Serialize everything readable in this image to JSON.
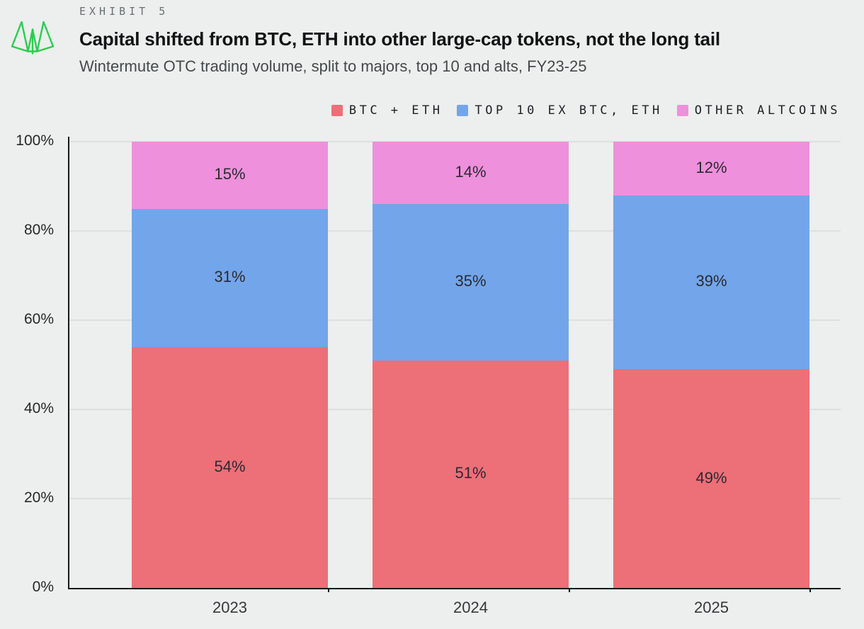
{
  "header": {
    "eyebrow": "EXHIBIT 5",
    "title": "Capital shifted from BTC, ETH into other large-cap tokens, not the long tail",
    "subtitle": "Wintermute OTC trading volume, split to majors, top 10 and alts, FY23-25",
    "logo_color": "#2BCD4F"
  },
  "colors": {
    "background": "#ECEFED",
    "axis": "#17191B",
    "gridline": "#DDE1DE",
    "bar_label": "#2A2B30"
  },
  "chart_data": {
    "type": "bar",
    "stacked": true,
    "title": "Capital shifted from BTC, ETH into other large-cap tokens, not the long tail",
    "subtitle": "Wintermute OTC trading volume, split to majors, top 10 and alts, FY23-25",
    "categories": [
      "2023",
      "2024",
      "2025"
    ],
    "series": [
      {
        "name": "BTC + ETH",
        "color": "#ED6F78",
        "values": [
          54,
          51,
          49
        ]
      },
      {
        "name": "TOP 10 EX BTC, ETH",
        "color": "#73A5EA",
        "values": [
          31,
          35,
          39
        ]
      },
      {
        "name": "OTHER ALTCOINS",
        "color": "#EE90DC",
        "values": [
          15,
          14,
          12
        ]
      }
    ],
    "value_suffix": "%",
    "xlabel": "",
    "ylabel": "",
    "ylim": [
      0,
      100
    ],
    "yticks": [
      0,
      20,
      40,
      60,
      80,
      100
    ],
    "ytick_suffix": "%",
    "grid": true,
    "legend_position": "top-right"
  }
}
